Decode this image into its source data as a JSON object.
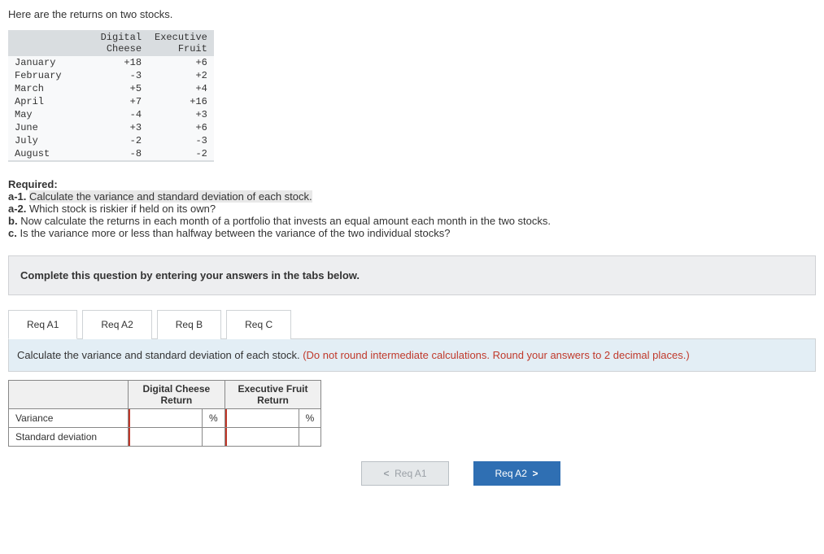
{
  "intro": "Here are the returns on two stocks.",
  "dataTable": {
    "headers": [
      "",
      "Digital Cheese",
      "Executive Fruit"
    ],
    "rows": [
      {
        "month": "January",
        "dc": "+18",
        "ef": "+6"
      },
      {
        "month": "February",
        "dc": "-3",
        "ef": "+2"
      },
      {
        "month": "March",
        "dc": "+5",
        "ef": "+4"
      },
      {
        "month": "April",
        "dc": "+7",
        "ef": "+16"
      },
      {
        "month": "May",
        "dc": "-4",
        "ef": "+3"
      },
      {
        "month": "June",
        "dc": "+3",
        "ef": "+6"
      },
      {
        "month": "July",
        "dc": "-2",
        "ef": "-3"
      },
      {
        "month": "August",
        "dc": "-8",
        "ef": "-2"
      }
    ]
  },
  "required": {
    "heading": "Required:",
    "a1_label": "a-1.",
    "a1_text": "Calculate the variance and standard deviation of each stock.",
    "a2_label": "a-2.",
    "a2_text": "Which stock is riskier if held on its own?",
    "b_label": "b.",
    "b_text": "Now calculate the returns in each month of a portfolio that invests an equal amount each month in the two stocks.",
    "c_label": "c.",
    "c_text": "Is the variance more or less than halfway between the variance of the two individual stocks?"
  },
  "instruction": "Complete this question by entering your answers in the tabs below.",
  "tabs": {
    "a1": "Req A1",
    "a2": "Req A2",
    "b": "Req B",
    "c": "Req C"
  },
  "panel": {
    "prompt": "Calculate the variance and standard deviation of each stock. ",
    "hint": "(Do not round intermediate calculations. Round your answers to 2 decimal places.)"
  },
  "answer": {
    "col1": "Digital Cheese Return",
    "col2": "Executive Fruit Return",
    "row1": "Variance",
    "row2": "Standard deviation",
    "pct": "%"
  },
  "nav": {
    "prev": "Req A1",
    "next": "Req A2"
  },
  "colors": {
    "highlight": "#e8e8e8",
    "instr_bg": "#edeef0",
    "panel_bg": "#e3eef5",
    "hint": "#c0392b",
    "btn_next": "#2f6fb3"
  }
}
